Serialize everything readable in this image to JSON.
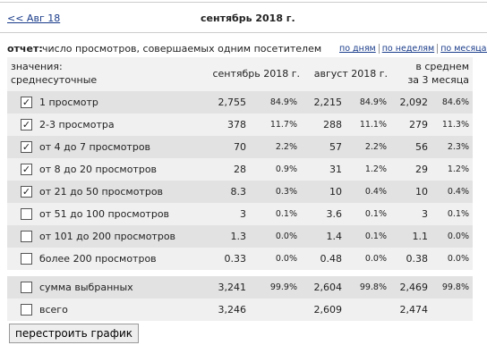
{
  "nav": {
    "prev": "<< Авг 18",
    "title": "сентябрь 2018 г."
  },
  "report": {
    "label": "отчет:",
    "text": "число просмотров, совершаемых одним посетителем",
    "links": [
      "по дням",
      "по неделям",
      "по месяцам"
    ]
  },
  "table": {
    "header": {
      "first": [
        "значения:",
        "среднесуточные"
      ],
      "columns": [
        [
          "сентябрь 2018 г."
        ],
        [
          "август 2018 г."
        ],
        [
          "в среднем",
          "за 3 месяца"
        ]
      ]
    },
    "rows": [
      {
        "checked": true,
        "label": "1 просмотр",
        "cells": [
          "2,755",
          "84.9%",
          "2,215",
          "84.9%",
          "2,092",
          "84.6%"
        ]
      },
      {
        "checked": true,
        "label": "2-3 просмотра",
        "cells": [
          "378",
          "11.7%",
          "288",
          "11.1%",
          "279",
          "11.3%"
        ]
      },
      {
        "checked": true,
        "label": "от 4 до 7 просмотров",
        "cells": [
          "70",
          "2.2%",
          "57",
          "2.2%",
          "56",
          "2.3%"
        ]
      },
      {
        "checked": true,
        "label": "от 8 до 20 просмотров",
        "cells": [
          "28",
          "0.9%",
          "31",
          "1.2%",
          "29",
          "1.2%"
        ]
      },
      {
        "checked": true,
        "label": "от 21 до 50 просмотров",
        "cells": [
          "8.3",
          "0.3%",
          "10",
          "0.4%",
          "10",
          "0.4%"
        ]
      },
      {
        "checked": false,
        "label": "от 51 до 100 просмотров",
        "cells": [
          "3",
          "0.1%",
          "3.6",
          "0.1%",
          "3",
          "0.1%"
        ]
      },
      {
        "checked": false,
        "label": "от 101 до 200 просмотров",
        "cells": [
          "1.3",
          "0.0%",
          "1.4",
          "0.1%",
          "1.1",
          "0.0%"
        ]
      },
      {
        "checked": false,
        "label": "более 200 просмотров",
        "cells": [
          "0.33",
          "0.0%",
          "0.48",
          "0.0%",
          "0.38",
          "0.0%"
        ]
      }
    ],
    "summary": [
      {
        "checked": false,
        "label": "сумма выбранных",
        "cells": [
          "3,241",
          "99.9%",
          "2,604",
          "99.8%",
          "2,469",
          "99.8%"
        ]
      },
      {
        "checked": false,
        "label": "всего",
        "cells": [
          "3,246",
          "",
          "2,609",
          "",
          "2,474",
          ""
        ]
      }
    ]
  },
  "button": "перестроить график"
}
